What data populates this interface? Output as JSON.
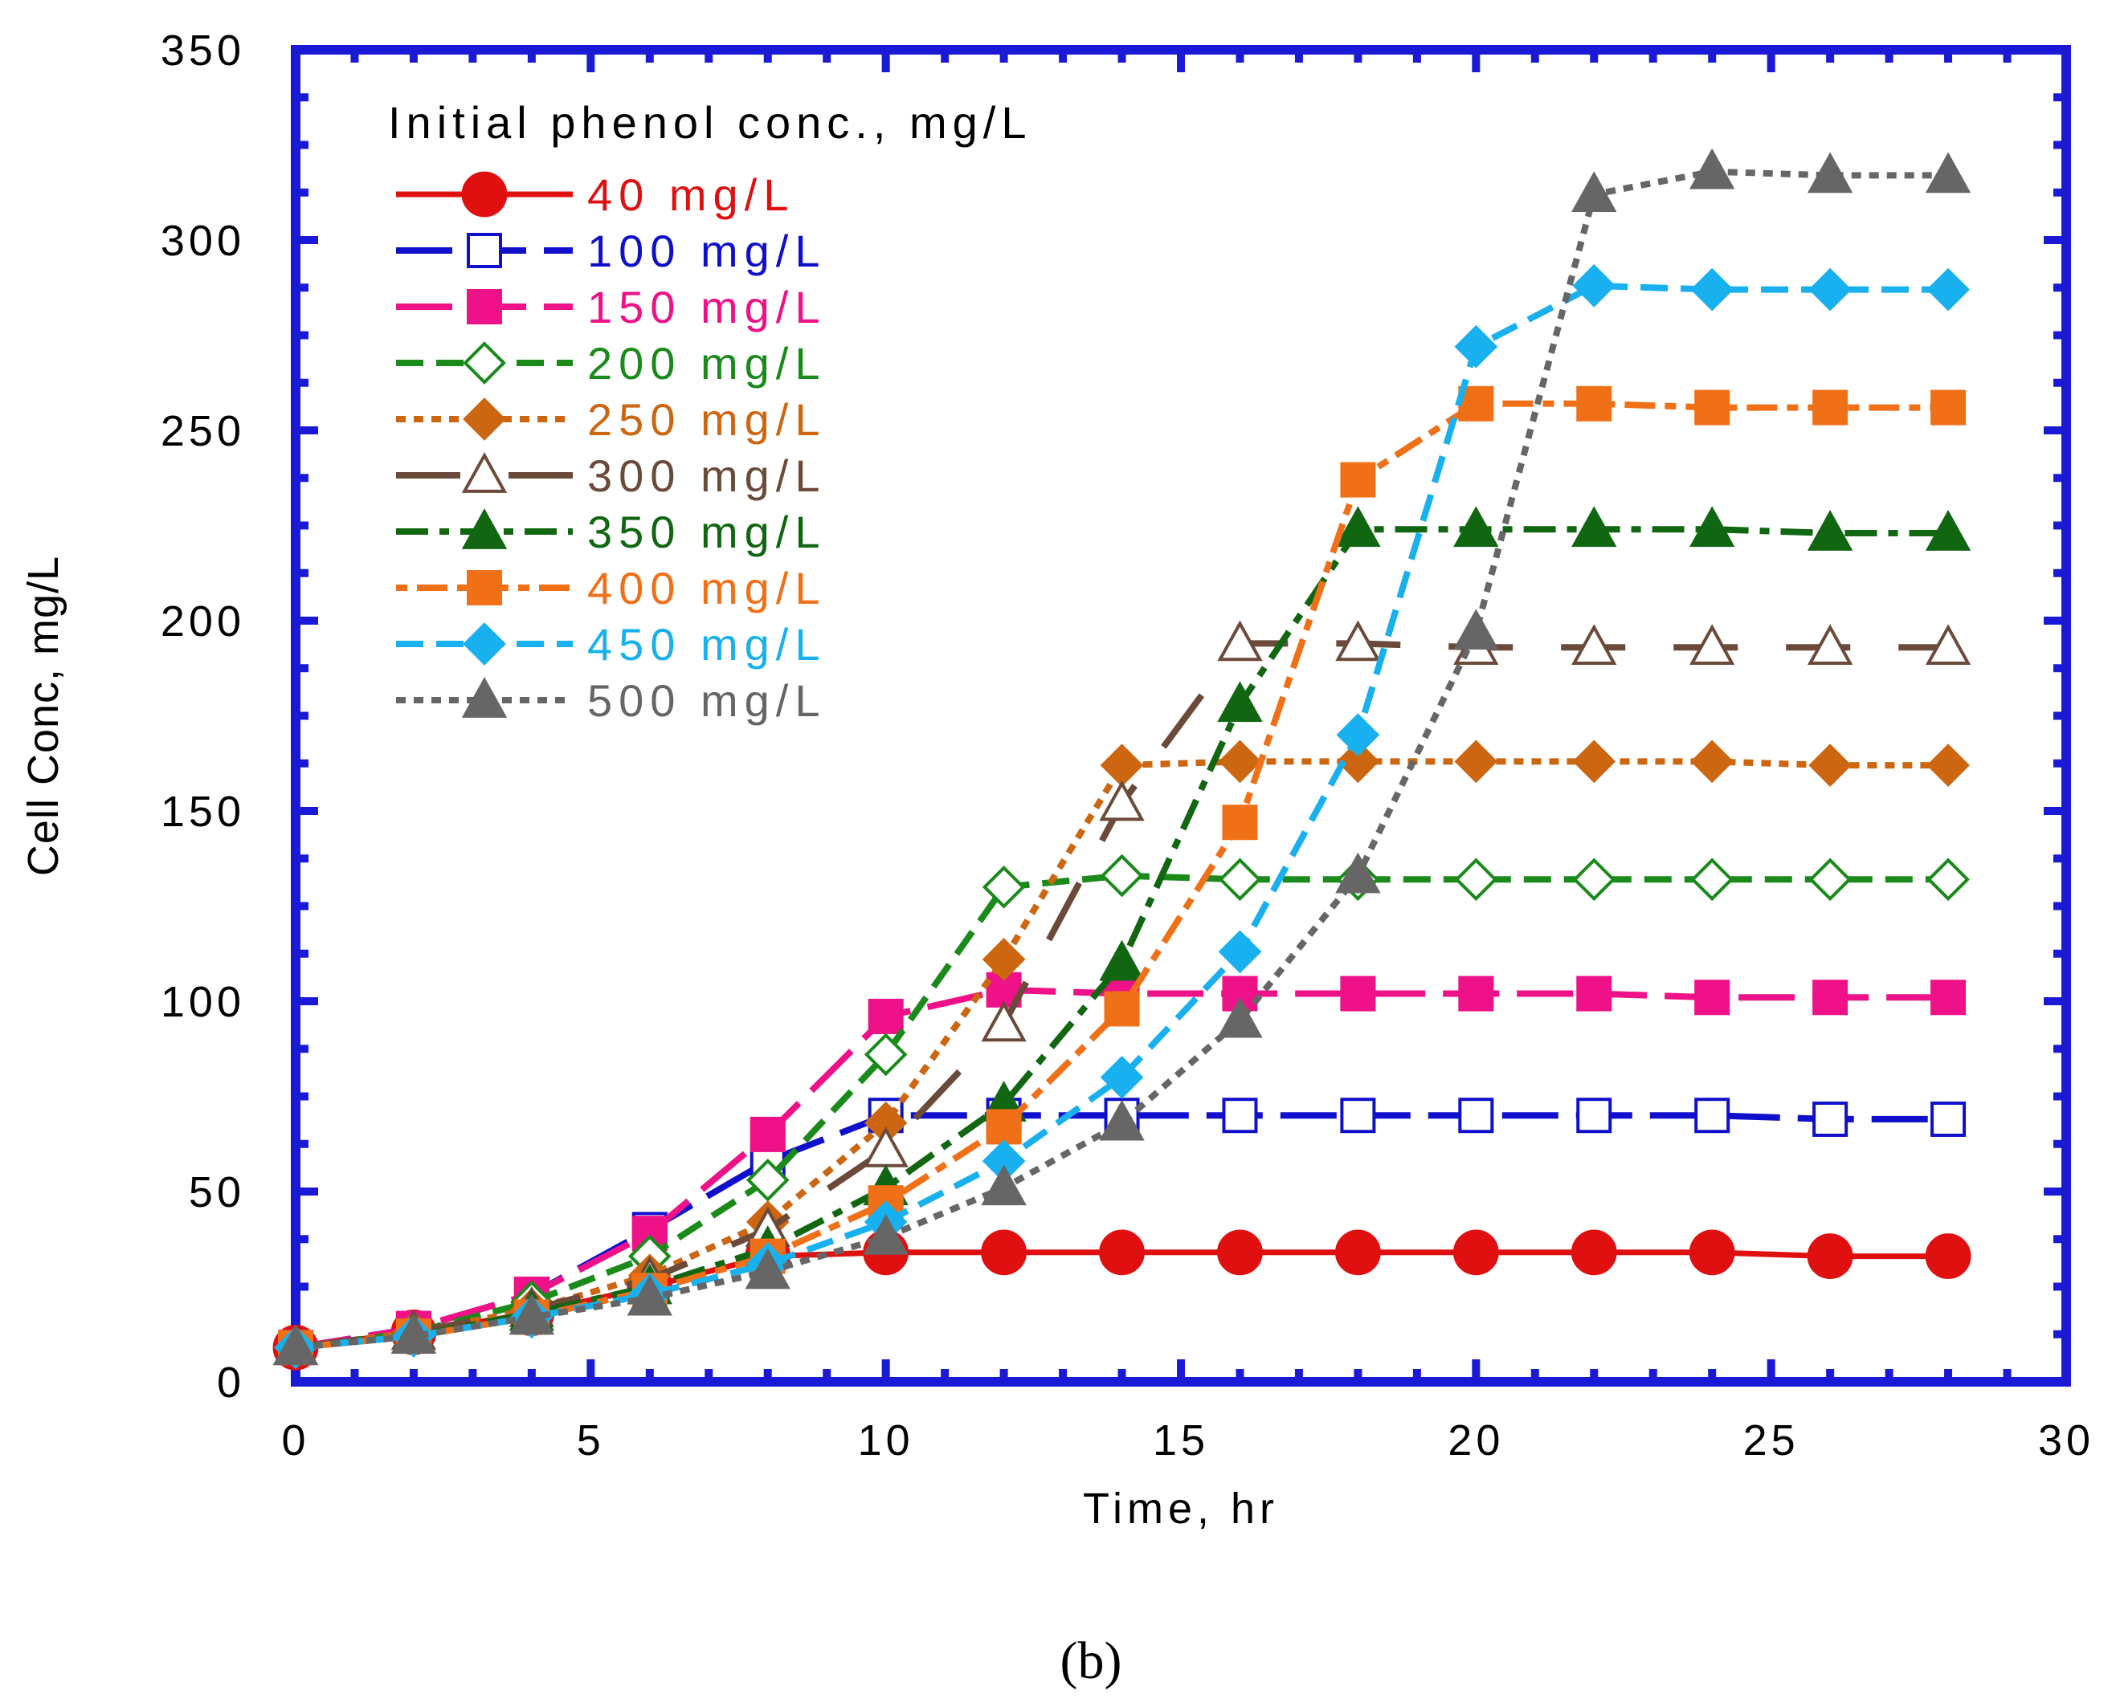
{
  "chart_data": {
    "type": "line",
    "title": "",
    "xlabel": "Time, hr",
    "ylabel": "Cell Conc, mg/L",
    "xlim": [
      0,
      30
    ],
    "ylim": [
      0,
      350
    ],
    "xticks": [
      0,
      5,
      10,
      15,
      20,
      25,
      30
    ],
    "yticks": [
      0,
      50,
      100,
      150,
      200,
      250,
      300,
      350
    ],
    "xtick_labels": [
      "0",
      "5",
      "10",
      "15",
      "20",
      "25",
      "30"
    ],
    "ytick_labels": [
      "0",
      "50",
      "100",
      "150",
      "200",
      "250",
      "300",
      "350"
    ],
    "grid": false,
    "frame_color": "#1a1ad6",
    "legend_title": "Initial phenol conc., mg/L",
    "legend_position": "top-left",
    "caption": "(b)",
    "x": [
      0,
      2,
      4,
      6,
      8,
      10,
      12,
      14,
      16,
      18,
      20,
      22,
      24,
      26,
      28
    ],
    "series": [
      {
        "name": "40 mg/L",
        "color": "#e01010",
        "marker": "circle",
        "filled": true,
        "dash": "solid",
        "values": [
          9,
          13,
          18,
          25,
          33,
          34,
          34,
          34,
          34,
          34,
          34,
          34,
          34,
          33,
          33
        ]
      },
      {
        "name": "100 mg/L",
        "color": "#1010cc",
        "marker": "square",
        "filled": false,
        "dash": "longdash",
        "values": [
          9,
          14,
          23,
          40,
          58,
          70,
          70,
          70,
          70,
          70,
          70,
          70,
          70,
          69,
          69
        ]
      },
      {
        "name": "150 mg/L",
        "color": "#ee1188",
        "marker": "square",
        "filled": true,
        "dash": "longdash",
        "values": [
          9,
          14,
          23,
          39,
          65,
          96,
          103,
          102,
          102,
          102,
          102,
          102,
          101,
          101,
          101
        ]
      },
      {
        "name": "200 mg/L",
        "color": "#1a8a1a",
        "marker": "diamond",
        "filled": false,
        "dash": "dash",
        "values": [
          9,
          13,
          21,
          33,
          53,
          86,
          130,
          133,
          132,
          132,
          132,
          132,
          132,
          132,
          132
        ]
      },
      {
        "name": "250 mg/L",
        "color": "#cc6611",
        "marker": "diamond",
        "filled": true,
        "dash": "dot",
        "values": [
          9,
          13,
          19,
          28,
          42,
          68,
          111,
          162,
          163,
          163,
          163,
          163,
          163,
          162,
          162
        ]
      },
      {
        "name": "300 mg/L",
        "color": "#6b4a3a",
        "marker": "triangle",
        "filled": false,
        "dash": "longgap",
        "values": [
          9,
          13,
          19,
          27,
          40,
          61,
          94,
          152,
          194,
          194,
          193,
          193,
          193,
          193,
          193
        ]
      },
      {
        "name": "350 mg/L",
        "color": "#116611",
        "marker": "triangle",
        "filled": true,
        "dash": "dashdot",
        "values": [
          9,
          12,
          18,
          25,
          35,
          51,
          73,
          110,
          178,
          224,
          224,
          224,
          224,
          223,
          223
        ]
      },
      {
        "name": "400 mg/L",
        "color": "#f07018",
        "marker": "square",
        "filled": true,
        "dash": "dotdash",
        "values": [
          9,
          12,
          17,
          24,
          33,
          47,
          67,
          98,
          147,
          237,
          257,
          257,
          256,
          256,
          256
        ]
      },
      {
        "name": "450 mg/L",
        "color": "#18b0ee",
        "marker": "diamond",
        "filled": true,
        "dash": "dash",
        "values": [
          9,
          12,
          17,
          23,
          31,
          42,
          58,
          80,
          113,
          170,
          272,
          288,
          287,
          287,
          287
        ]
      },
      {
        "name": "500 mg/L",
        "color": "#666666",
        "marker": "triangle",
        "filled": true,
        "dash": "dot",
        "values": [
          9,
          12,
          17,
          22,
          29,
          38,
          51,
          68,
          95,
          133,
          197,
          312,
          318,
          317,
          317
        ]
      }
    ]
  }
}
